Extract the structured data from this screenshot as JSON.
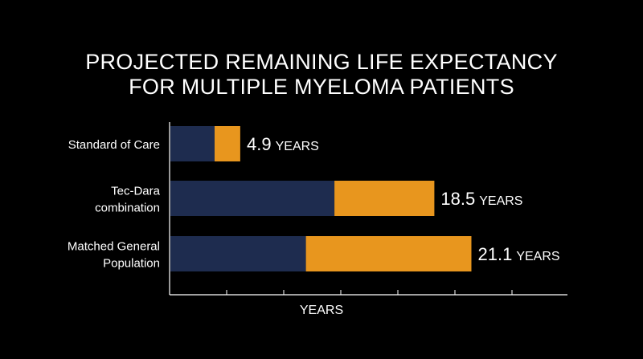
{
  "chart_data": {
    "type": "bar",
    "orientation": "horizontal",
    "stacked": true,
    "title": [
      "PROJECTED REMAINING LIFE EXPECTANCY",
      "FOR MULTIPLE MYELOMA PATIENTS"
    ],
    "xlabel": "YEARS",
    "ylabel": "",
    "categories": [
      "Standard of Care",
      "Tec-Dara combination",
      "Matched General Population"
    ],
    "category_lines": [
      [
        "Standard of Care"
      ],
      [
        "Tec-Dara",
        "combination"
      ],
      [
        "Matched General",
        "Population"
      ]
    ],
    "series": [
      {
        "values": [
          3.1,
          11.5,
          9.5
        ]
      },
      {
        "values": [
          1.8,
          7.0,
          11.6
        ]
      }
    ],
    "totals": [
      4.9,
      18.5,
      21.1
    ],
    "value_labels": [
      {
        "number": "4.9",
        "unit": "YEARS"
      },
      {
        "number": "18.5",
        "unit": "YEARS"
      },
      {
        "number": "21.1",
        "unit": "YEARS"
      }
    ],
    "xlim": [
      0,
      30
    ],
    "tick_count": 6,
    "tick_labels_visible": false,
    "grid": false,
    "legend": "none",
    "colors": {
      "background": "#000000",
      "series": [
        "#1e2c4f",
        "#e8961e"
      ],
      "text": "#ffffff",
      "axis": "#ffffff"
    }
  }
}
